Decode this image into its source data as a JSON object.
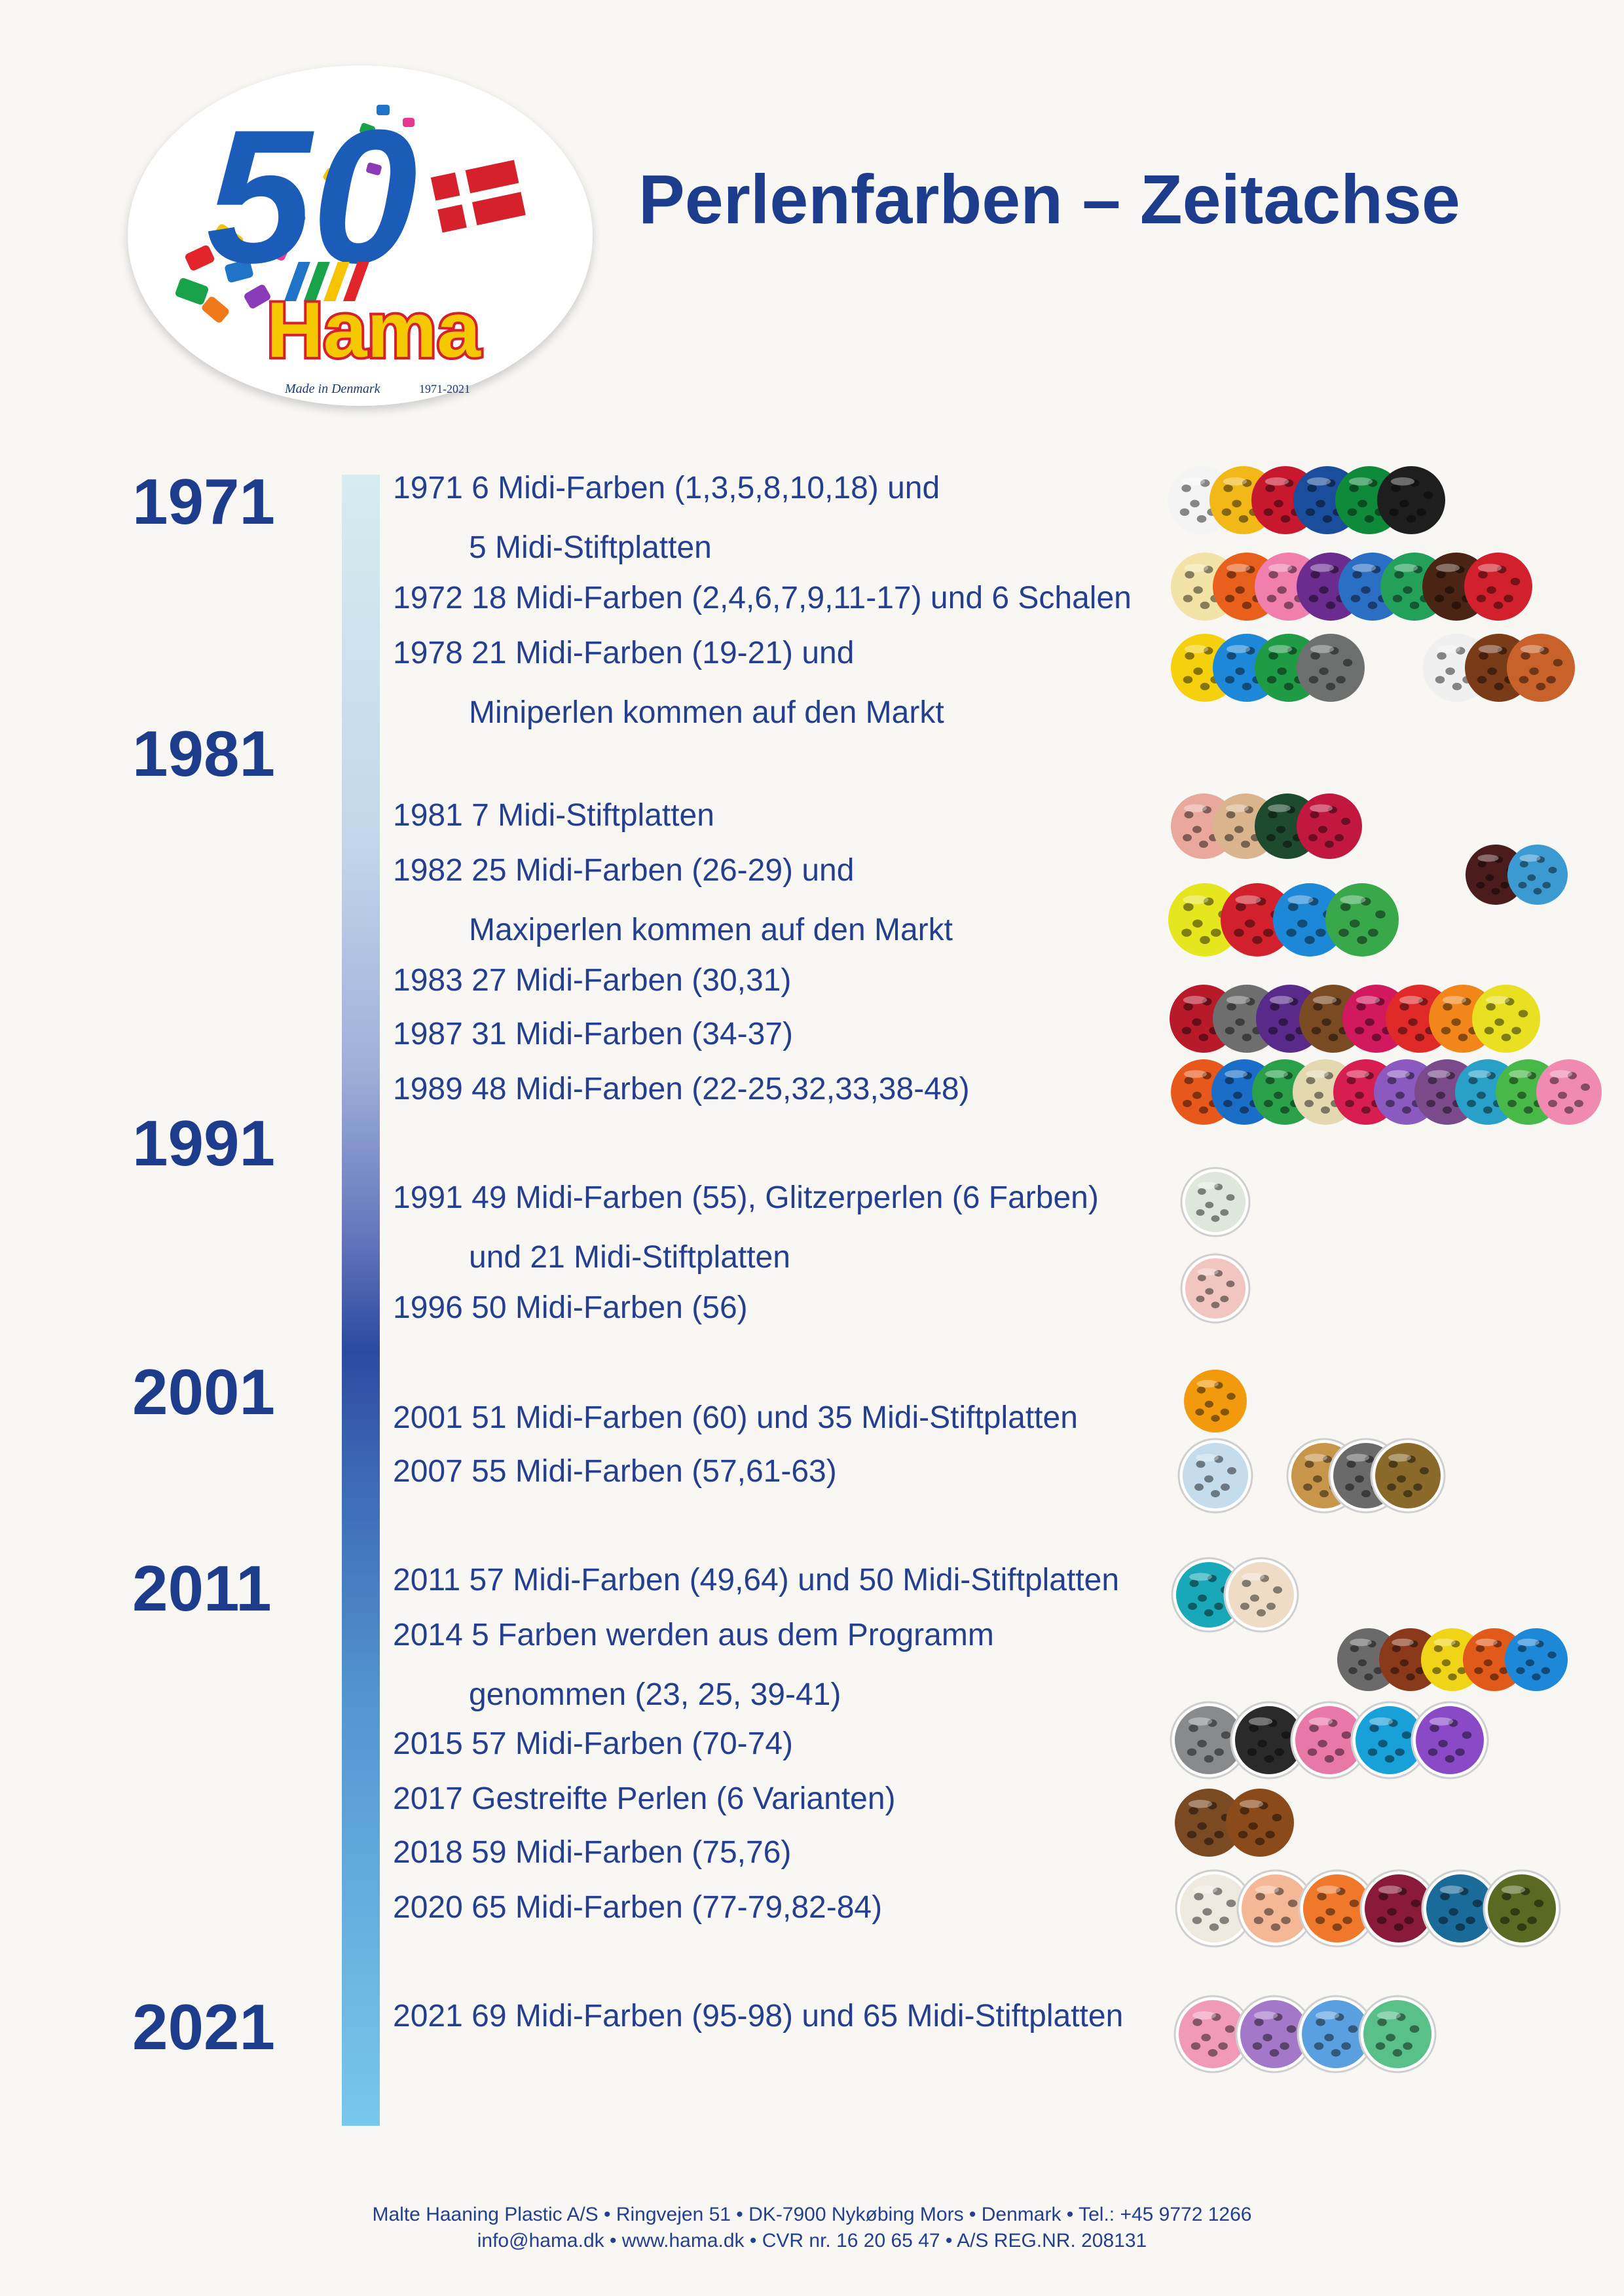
{
  "logo": {
    "number": "50",
    "brand": "Hama",
    "tagline": "Made in Denmark",
    "years": "1971-2021"
  },
  "title": "Perlenfarben – Zeitachse",
  "decades": [
    "1971",
    "1981",
    "1991",
    "2001",
    "2011",
    "2021"
  ],
  "entries": [
    {
      "line": "1971 6 Midi-Farben (1,3,5,8,10,18) und",
      "cont": "5 Midi-Stiftplatten"
    },
    {
      "line": "1972 18 Midi-Farben (2,4,6,7,9,11-17) und 6 Schalen",
      "cont": ""
    },
    {
      "line": "1978 21 Midi-Farben (19-21) und",
      "cont": "Miniperlen kommen auf den Markt"
    },
    {
      "line": "1981 7 Midi-Stiftplatten",
      "cont": ""
    },
    {
      "line": "1982 25 Midi-Farben (26-29) und",
      "cont": "Maxiperlen kommen auf den Markt"
    },
    {
      "line": "1983 27 Midi-Farben (30,31)",
      "cont": ""
    },
    {
      "line": "1987 31 Midi-Farben (34-37)",
      "cont": ""
    },
    {
      "line": "1989 48 Midi-Farben (22-25,32,33,38-48)",
      "cont": ""
    },
    {
      "line": "1991 49 Midi-Farben (55), Glitzerperlen (6 Farben)",
      "cont": "und 21 Midi-Stiftplatten"
    },
    {
      "line": "1996 50 Midi-Farben (56)",
      "cont": ""
    },
    {
      "line": "2001 51 Midi-Farben (60) und 35 Midi-Stiftplatten",
      "cont": ""
    },
    {
      "line": "2007 55 Midi-Farben (57,61-63)",
      "cont": ""
    },
    {
      "line": "2011 57 Midi-Farben (49,64) und 50 Midi-Stiftplatten",
      "cont": ""
    },
    {
      "line": "2014 5 Farben werden aus dem Programm",
      "cont": "genommen (23, 25, 39-41)"
    },
    {
      "line": "2015 57 Midi-Farben (70-74)",
      "cont": ""
    },
    {
      "line": "2017 Gestreifte Perlen (6 Varianten)",
      "cont": ""
    },
    {
      "line": "2018 59 Midi-Farben (75,76)",
      "cont": ""
    },
    {
      "line": "2020 65 Midi-Farben (77-79,82-84)",
      "cont": ""
    },
    {
      "line": "2021 69 Midi-Farben (95-98) und 65 Midi-Stiftplatten",
      "cont": ""
    }
  ],
  "bead_rows": [
    {
      "colors": [
        "#f4f4f4",
        "#f2b817",
        "#c8182e",
        "#1a4e9c",
        "#0f8a3a",
        "#1e1e1e"
      ],
      "bowl": false
    },
    {
      "colors": [
        "#f3e3a6",
        "#e8601c",
        "#f07fae",
        "#6a2c8f",
        "#2b6fc4",
        "#23a05a",
        "#4a2414",
        "#d2202c"
      ],
      "bowl": false
    },
    {
      "colors": [
        "#f4d10c",
        "#1e88d8",
        "#1f9a45",
        "#6e7070",
        "#f0f0f0",
        "#7a3b18",
        "#c8622a"
      ],
      "bowl": false
    },
    {
      "colors": [
        "#e9a89b",
        "#d9b48c",
        "#1e4a2e",
        "#c2183f"
      ],
      "bowl": false
    },
    {
      "colors": [
        "#4a1c1c",
        "#3a9ad1"
      ],
      "bowl": false
    },
    {
      "colors": [
        "#e6e61e",
        "#d2202c",
        "#1e88d8",
        "#38a84a"
      ],
      "bowl": false
    },
    {
      "colors": [
        "#b81a2a",
        "#6e6e6e",
        "#5a2a8a",
        "#7a4a22",
        "#d2185e",
        "#e02a2a",
        "#f2861a",
        "#e8e020"
      ],
      "bowl": false
    },
    {
      "colors": [
        "#e8581c",
        "#1a6ec8",
        "#2aa04a",
        "#e4d8b0",
        "#d81e50",
        "#8a5ac0",
        "#7a4a8a",
        "#28a0c8",
        "#48b848",
        "#f08ab0"
      ],
      "bowl": false
    },
    {
      "colors": [
        "#dfe6dc"
      ],
      "bowl": true
    },
    {
      "colors": [
        "#f2c6c0"
      ],
      "bowl": true
    },
    {
      "colors": [
        "#f29a0c"
      ],
      "bowl": false
    },
    {
      "colors": [
        "#c4dcec",
        "#c8964a",
        "#6a6a6a",
        "#8a6a2a"
      ],
      "bowl": true
    },
    {
      "colors": [
        "#18a8b8",
        "#eedcc6"
      ],
      "bowl": true
    },
    {
      "colors": [
        "#6a6a6a",
        "#8a3a1a",
        "#f0d418",
        "#e25a1a",
        "#1e88d8"
      ],
      "bowl": false
    },
    {
      "colors": [
        "#888a8c",
        "#2a2a2a",
        "#e878a8",
        "#18a0d8",
        "#8a4ac8"
      ],
      "bowl": true
    },
    {
      "colors": [
        "#7a4a22",
        "#8a4a1a"
      ],
      "bowl": false
    },
    {
      "colors": [
        "#eeeae0",
        "#f4b896",
        "#f0782a",
        "#8a1a3a",
        "#1a6a9a",
        "#5a6a22"
      ],
      "bowl": true
    },
    {
      "colors": [
        "#f09ab8",
        "#a478c8",
        "#5aa0e0",
        "#58c088"
      ],
      "bowl": true
    }
  ],
  "footer": {
    "line1": "Malte Haaning Plastic A/S • Ringvejen 51 • DK-7900 Nykøbing Mors • Denmark • Tel.: +45 9772 1266",
    "line2": "info@hama.dk • www.hama.dk • CVR nr. 16 20 65 47 • A/S REG.NR. 208131"
  }
}
